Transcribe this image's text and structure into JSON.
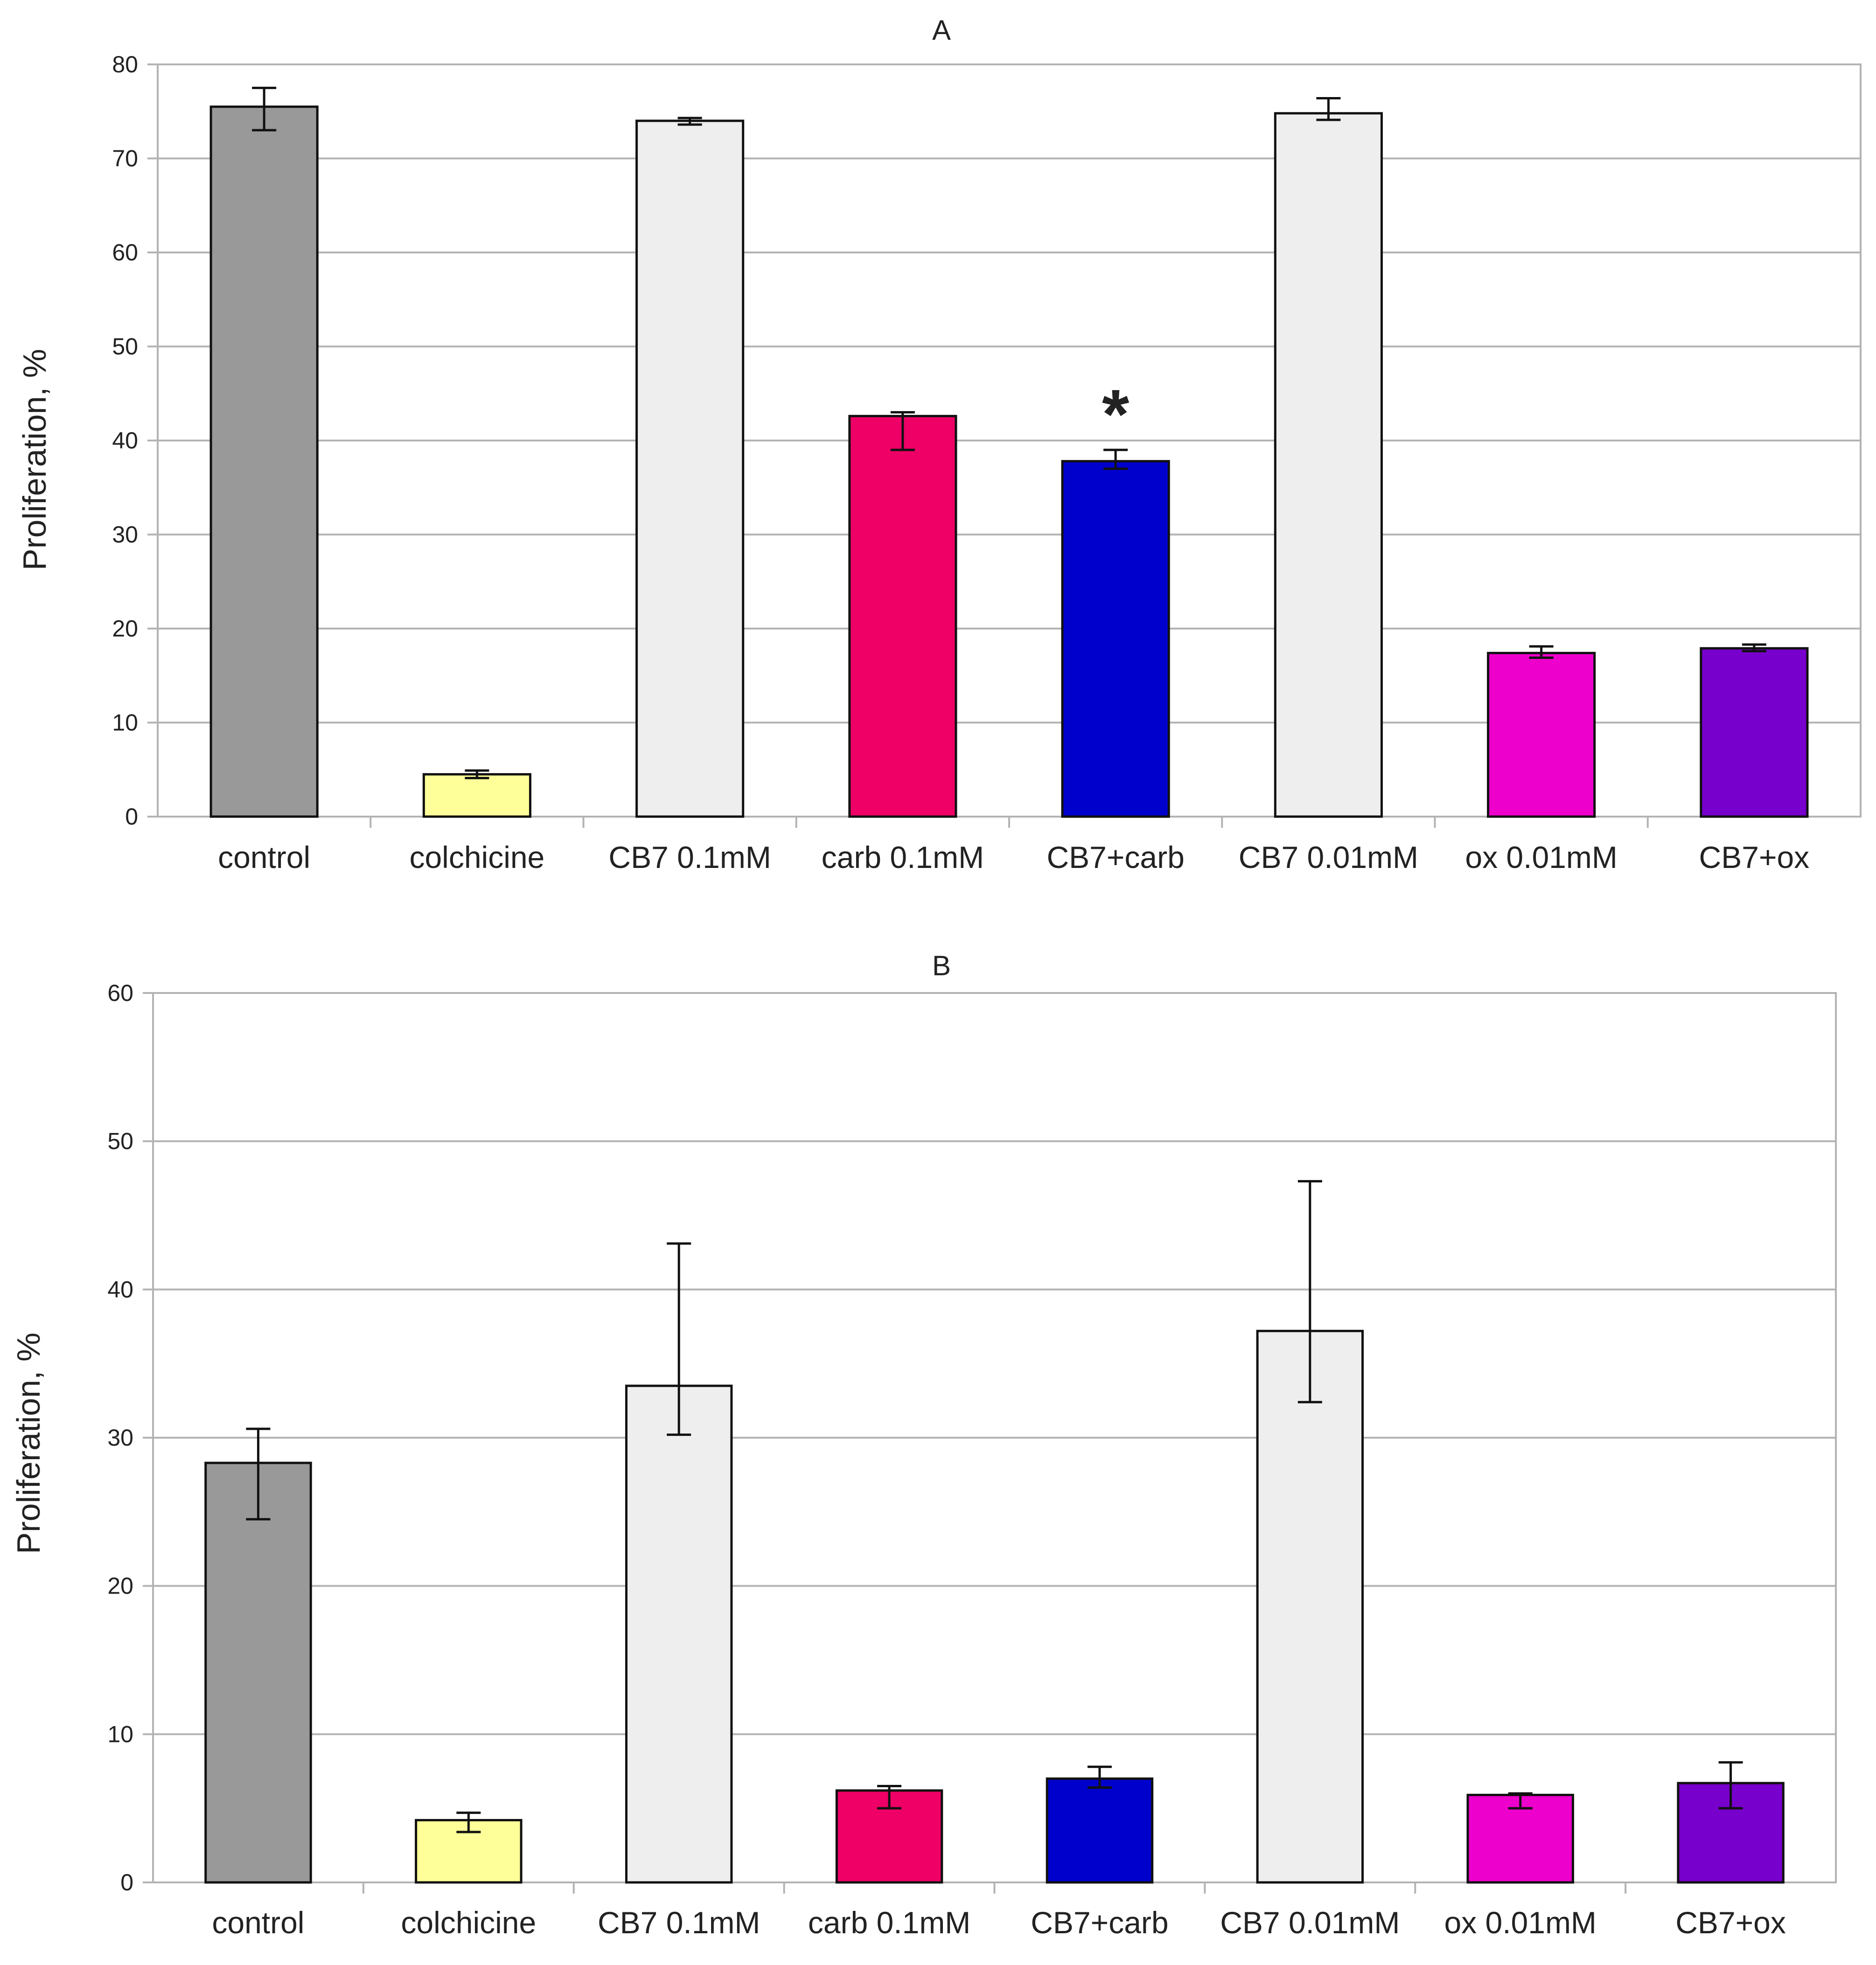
{
  "chart_data": [
    {
      "type": "bar",
      "title": "A",
      "ylabel": "Proliferation, %",
      "xlabel": "",
      "ylim": [
        0,
        80
      ],
      "yticks": [
        0,
        10,
        20,
        30,
        40,
        50,
        60,
        70,
        80
      ],
      "grid": true,
      "categories": [
        "control",
        "colchicine",
        "CB7 0.1mM",
        "carb 0.1mM",
        "CB7+carb",
        "CB7 0.01mM",
        "ox 0.01mM",
        "CB7+ox"
      ],
      "values": [
        75.5,
        4.5,
        74,
        42.6,
        37.8,
        74.8,
        17.4,
        17.9
      ],
      "err_low": [
        73,
        4.1,
        73.6,
        39,
        37,
        74.1,
        16.9,
        17.6
      ],
      "err_high": [
        77.5,
        4.9,
        74.3,
        43,
        39,
        76.4,
        18.1,
        18.3
      ],
      "colors": [
        "#999999",
        "#ffff99",
        "#eeeeee",
        "#ee0066",
        "#0000cc",
        "#eeeeee",
        "#ee00cc",
        "#7700cc"
      ],
      "annotations": [
        {
          "category": "CB7+carb",
          "text": "*"
        }
      ]
    },
    {
      "type": "bar",
      "title": "B",
      "ylabel": "Proliferation, %",
      "xlabel": "",
      "ylim": [
        0,
        60
      ],
      "yticks": [
        0,
        10,
        20,
        30,
        40,
        50,
        60
      ],
      "grid": true,
      "categories": [
        "control",
        "colchicine",
        "CB7 0.1mM",
        "carb 0.1mM",
        "CB7+carb",
        "CB7 0.01mM",
        "ox 0.01mM",
        "CB7+ox"
      ],
      "values": [
        28.3,
        4.2,
        33.5,
        6.2,
        7,
        37.2,
        5.9,
        6.7
      ],
      "err_low": [
        24.5,
        3.4,
        30.2,
        5,
        6.4,
        32.4,
        5,
        5
      ],
      "err_high": [
        30.6,
        4.7,
        43.1,
        6.5,
        7.8,
        47.3,
        6,
        8.1
      ],
      "colors": [
        "#999999",
        "#ffff99",
        "#eeeeee",
        "#ee0066",
        "#0000cc",
        "#eeeeee",
        "#ee00cc",
        "#7700cc"
      ],
      "annotations": []
    }
  ]
}
